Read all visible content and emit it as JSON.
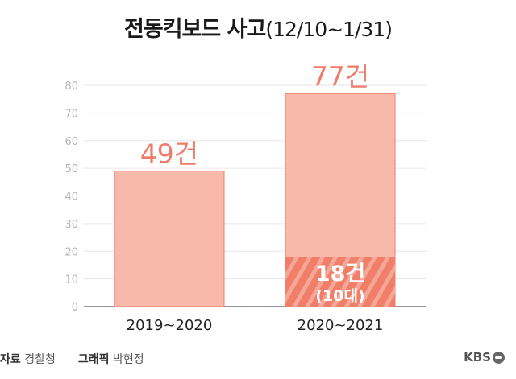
{
  "title": {
    "main": "전동킥보드 사고",
    "period": "(12/10~1/31)"
  },
  "chart_data": {
    "type": "bar",
    "categories": [
      "2019~2020",
      "2020~2021"
    ],
    "values": [
      49,
      77
    ],
    "value_labels": [
      "49건",
      "77건"
    ],
    "highlight": {
      "category_index": 1,
      "value": 18,
      "label": "18건",
      "sublabel": "(10대)"
    },
    "yticks": [
      0,
      10,
      20,
      30,
      40,
      50,
      60,
      70,
      80
    ],
    "ylim": [
      0,
      80
    ],
    "grid": true,
    "colors": {
      "bar": "#f8b9ab",
      "bar_edge": "#ef7c6a",
      "highlight": "#f07e68",
      "label": "#ef7c6a",
      "axis_text": "#b5b5b5",
      "grid": "#e6e6e6"
    }
  },
  "footer": {
    "source_label": "자료",
    "source": "경찰청",
    "graphic_label": "그래픽",
    "graphic": "박현정",
    "logo": "KBS"
  }
}
